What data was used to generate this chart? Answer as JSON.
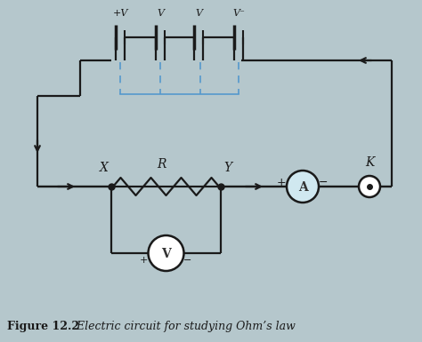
{
  "bg_color": "#b5c7cc",
  "line_color": "#1a1a1a",
  "blue_color": "#5599cc",
  "ammeter_fill": "#d0e8f0",
  "fig_caption_bold": "Figure 12.2",
  "fig_caption_italic": " Electric circuit for studying Ohm’s law",
  "battery_labels": [
    "+V",
    "V",
    "V",
    "V⁻"
  ],
  "lw": 1.6
}
